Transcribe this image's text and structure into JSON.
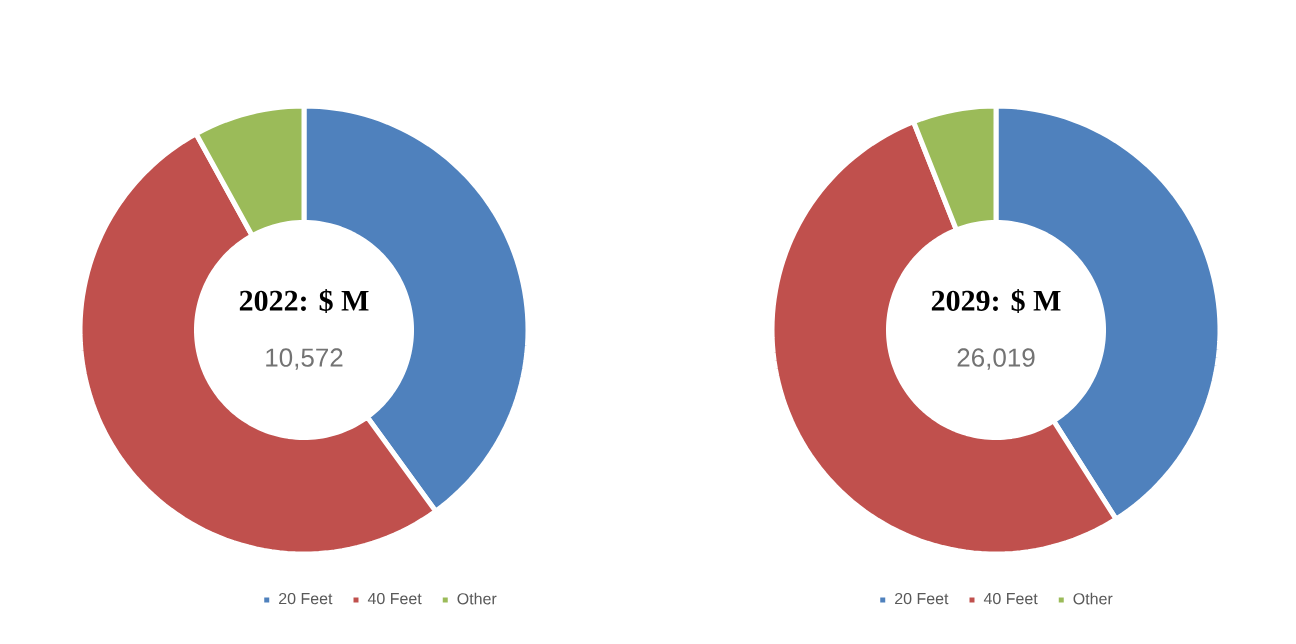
{
  "chart_data": [
    {
      "type": "donut",
      "title": "2022: $ M",
      "annotations": [
        "10,572"
      ],
      "categories": [
        "20 Feet",
        "40 Feet",
        "Other"
      ],
      "values": [
        40,
        52,
        8
      ],
      "colors": [
        "#4f81bd",
        "#c0504d",
        "#9bbb59"
      ],
      "legend": "bottom"
    },
    {
      "type": "donut",
      "title": "2029: $ M",
      "annotations": [
        "26,019"
      ],
      "categories": [
        "20 Feet",
        "40 Feet",
        "Other"
      ],
      "values": [
        41,
        53,
        6
      ],
      "colors": [
        "#4f81bd",
        "#c0504d",
        "#9bbb59"
      ],
      "legend": "bottom"
    }
  ]
}
